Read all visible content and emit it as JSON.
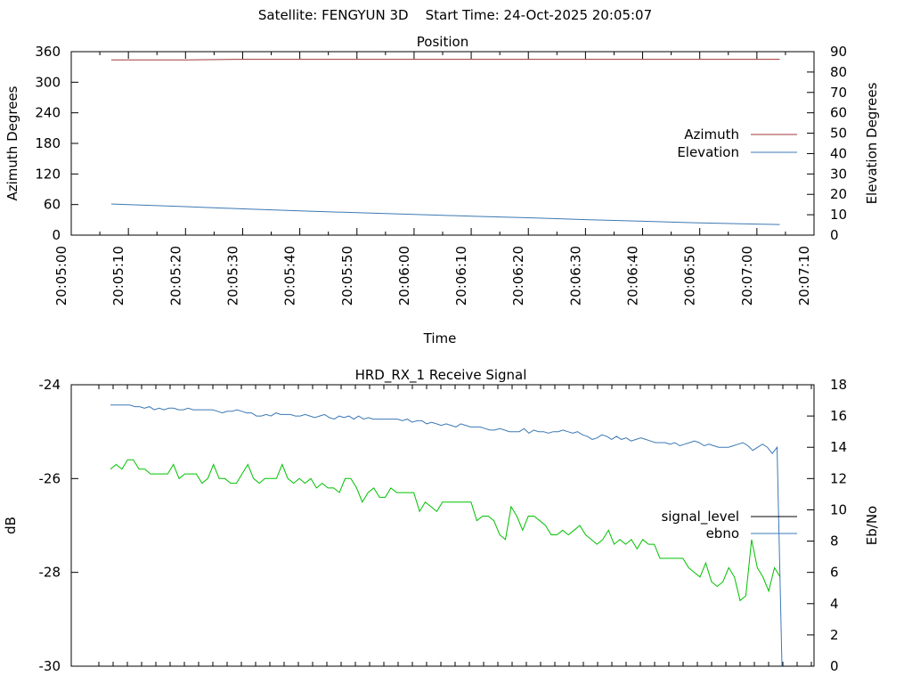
{
  "header": {
    "title": "Satellite: FENGYUN 3D    Start Time: 24-Oct-2025 20:05:07"
  },
  "chart_data": [
    {
      "type": "line",
      "title": "Position",
      "xlabel": "Time",
      "ylabel": "Azimuth Degrees",
      "y2label": "Elevation Degrees",
      "xlim": [
        "20:05:00",
        "20:07:10"
      ],
      "xticks": [
        "20:05:00",
        "20:05:10",
        "20:05:20",
        "20:05:30",
        "20:05:40",
        "20:05:50",
        "20:06:00",
        "20:06:10",
        "20:06:20",
        "20:06:30",
        "20:06:40",
        "20:06:50",
        "20:07:00",
        "20:07:10"
      ],
      "ylim": [
        0,
        360
      ],
      "yticks": [
        "0",
        "60",
        "120",
        "180",
        "240",
        "300",
        "360"
      ],
      "y2lim": [
        0,
        90
      ],
      "y2ticks": [
        "0",
        "10",
        "20",
        "30",
        "40",
        "50",
        "60",
        "70",
        "80",
        "90"
      ],
      "legend": "right",
      "series": [
        {
          "name": "Azimuth",
          "axis": "left",
          "color": "#a0383a",
          "x": [
            "20:05:07",
            "20:05:20",
            "20:05:30",
            "20:05:40",
            "20:06:00",
            "20:06:20",
            "20:06:40",
            "20:07:00",
            "20:07:04"
          ],
          "values": [
            344,
            344,
            345,
            345,
            345,
            345,
            345,
            345,
            345
          ]
        },
        {
          "name": "Elevation",
          "axis": "right",
          "color": "#3c78b4",
          "x": [
            "20:05:07",
            "20:05:20",
            "20:05:30",
            "20:05:40",
            "20:05:50",
            "20:06:00",
            "20:06:10",
            "20:06:20",
            "20:06:30",
            "20:06:40",
            "20:06:50",
            "20:07:00",
            "20:07:04"
          ],
          "values": [
            15.3,
            14.0,
            12.9,
            11.9,
            11.0,
            10.2,
            9.3,
            8.5,
            7.6,
            6.8,
            6.0,
            5.4,
            5.2
          ]
        }
      ]
    },
    {
      "type": "line",
      "title": "HRD_RX_1 Receive Signal",
      "ylabel": "dB",
      "y2label": "Eb/No",
      "ylim": [
        -30,
        -24
      ],
      "yticks": [
        "-30",
        "-28",
        "-26",
        "-24"
      ],
      "y2lim": [
        0,
        18
      ],
      "y2ticks": [
        "0",
        "2",
        "4",
        "6",
        "8",
        "10",
        "12",
        "14",
        "16",
        "18"
      ],
      "legend": "right",
      "series": [
        {
          "name": "signal_level",
          "axis": "left",
          "color": "#00c000",
          "values": [
            -25.8,
            -25.7,
            -25.8,
            -25.6,
            -25.6,
            -25.8,
            -25.8,
            -25.9,
            -25.9,
            -25.9,
            -25.9,
            -25.7,
            -26.0,
            -25.9,
            -25.9,
            -25.9,
            -26.1,
            -26.0,
            -25.7,
            -26.0,
            -26.0,
            -26.1,
            -26.1,
            -25.9,
            -25.7,
            -26.0,
            -26.1,
            -26.0,
            -26.0,
            -26.0,
            -25.7,
            -26.0,
            -26.1,
            -26.0,
            -26.1,
            -26.0,
            -26.2,
            -26.1,
            -26.2,
            -26.2,
            -26.3,
            -26.0,
            -26.0,
            -26.2,
            -26.5,
            -26.3,
            -26.2,
            -26.4,
            -26.4,
            -26.2,
            -26.3,
            -26.3,
            -26.3,
            -26.3,
            -26.7,
            -26.5,
            -26.6,
            -26.7,
            -26.5,
            -26.5,
            -26.5,
            -26.5,
            -26.5,
            -26.5,
            -26.9,
            -26.8,
            -26.8,
            -26.9,
            -27.2,
            -27.3,
            -26.6,
            -26.8,
            -27.1,
            -26.8,
            -26.8,
            -26.9,
            -27.0,
            -27.2,
            -27.2,
            -27.1,
            -27.2,
            -27.1,
            -27.0,
            -27.2,
            -27.3,
            -27.4,
            -27.3,
            -27.1,
            -27.4,
            -27.3,
            -27.4,
            -27.3,
            -27.5,
            -27.3,
            -27.4,
            -27.4,
            -27.7,
            -27.7,
            -27.7,
            -27.7,
            -27.7,
            -27.9,
            -28.0,
            -28.1,
            -27.8,
            -28.2,
            -28.3,
            -28.2,
            -27.9,
            -28.1,
            -28.6,
            -28.5,
            -27.3,
            -27.9,
            -28.1,
            -28.4,
            -27.9,
            -28.1
          ]
        },
        {
          "name": "ebno",
          "axis": "right",
          "color": "#3c78b4",
          "values": [
            16.7,
            16.7,
            16.7,
            16.7,
            16.7,
            16.6,
            16.6,
            16.5,
            16.6,
            16.4,
            16.5,
            16.4,
            16.5,
            16.5,
            16.4,
            16.4,
            16.5,
            16.4,
            16.4,
            16.4,
            16.4,
            16.4,
            16.3,
            16.2,
            16.3,
            16.3,
            16.4,
            16.3,
            16.2,
            16.2,
            16.0,
            16.0,
            16.1,
            16.0,
            16.2,
            16.1,
            16.1,
            16.1,
            16.0,
            16.0,
            16.1,
            16.0,
            15.9,
            16.0,
            16.1,
            15.9,
            15.8,
            16.0,
            15.9,
            16.0,
            15.8,
            16.0,
            15.8,
            15.9,
            15.8,
            15.8,
            15.8,
            15.8,
            15.8,
            15.8,
            15.7,
            15.8,
            15.6,
            15.7,
            15.7,
            15.5,
            15.6,
            15.5,
            15.4,
            15.5,
            15.4,
            15.3,
            15.5,
            15.4,
            15.3,
            15.3,
            15.3,
            15.2,
            15.1,
            15.1,
            15.2,
            15.1,
            15.0,
            15.0,
            15.0,
            15.2,
            14.9,
            15.1,
            15.0,
            15.0,
            14.9,
            15.0,
            15.0,
            15.1,
            15.0,
            14.9,
            15.0,
            14.8,
            14.7,
            14.5,
            14.6,
            14.8,
            14.7,
            14.5,
            14.7,
            14.5,
            14.6,
            14.4,
            14.5,
            14.6,
            14.5,
            14.4,
            14.3,
            14.3,
            14.3,
            14.2,
            14.3,
            14.1,
            14.2,
            14.3,
            14.4,
            14.3,
            14.1,
            14.2,
            14.1,
            14.0,
            14.0,
            14.0,
            14.1,
            14.2,
            14.3,
            14.1,
            13.8,
            14.0,
            14.2,
            14.0,
            13.6,
            14.0,
            0.0
          ]
        }
      ]
    }
  ]
}
